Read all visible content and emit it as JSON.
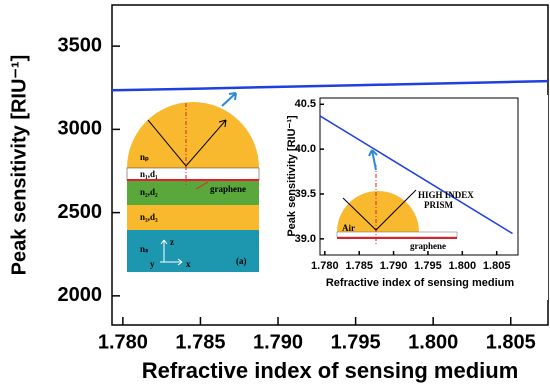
{
  "chart_data": [
    {
      "type": "line",
      "xlabel": "Refractive index of sensing medium",
      "ylabel": "Peak sensitivity [RIU⁻¹]",
      "x": [
        1.7793,
        1.785,
        1.79,
        1.795,
        1.8,
        1.805,
        1.8074
      ],
      "series": [
        {
          "color": "#1f3fe0",
          "values": [
            3235,
            3245,
            3255,
            3265,
            3275,
            3285,
            3290
          ]
        }
      ],
      "xlim": [
        1.7793,
        1.8074
      ],
      "ylim": [
        1825,
        3747
      ],
      "xticks": [
        {
          "value": 1.78,
          "label": "1.780"
        },
        1.785,
        {
          "value": 1.79,
          "label": "1.790"
        },
        1.795,
        {
          "value": 1.8,
          "label": "1.800"
        },
        1.805
      ],
      "yticks": [
        2000,
        2500,
        3000,
        3500
      ],
      "annotations": [
        "nₚ",
        "n₁,d₁",
        "graphene",
        "n₂,d₂",
        "n₃,d₃",
        "nₛ",
        "z",
        "y",
        "x",
        "(a)"
      ]
    },
    {
      "type": "line",
      "xlabel": "Refractive index of sensing medium",
      "ylabel": "Peak sensitivity [RIU⁻¹]",
      "x": [
        1.7793,
        1.8073
      ],
      "series": [
        {
          "color": "#1f3fe0",
          "values": [
            40.37,
            39.06
          ]
        }
      ],
      "xlim": [
        1.7793,
        1.8081
      ],
      "ylim": [
        38.82,
        40.57
      ],
      "xticks": [
        {
          "value": 1.78,
          "label": "1.780"
        },
        1.785,
        {
          "value": 1.79,
          "label": "1.790"
        },
        1.795,
        {
          "value": 1.8,
          "label": "1.800"
        },
        1.805
      ],
      "yticks": [
        {
          "value": 39.0,
          "label": "39.0"
        },
        39.5,
        {
          "value": 40.0,
          "label": "40.0"
        },
        40.5
      ],
      "annotations": [
        "Air",
        "HIGH INDEX",
        "PRISM",
        "graphene"
      ]
    }
  ]
}
